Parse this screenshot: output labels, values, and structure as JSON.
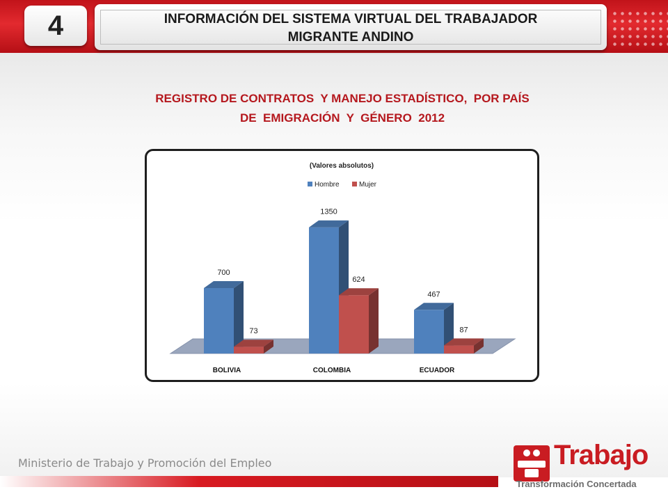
{
  "header": {
    "number": "4",
    "title_line1": "INFORMACIÓN DEL SISTEMA VIRTUAL DEL TRABAJADOR",
    "title_line2": "MIGRANTE ANDINO"
  },
  "subtitle": {
    "line1": "REGISTRO DE CONTRATOS  Y MANEJO ESTADÍSTICO,  POR PAÍS",
    "line2": "DE  EMIGRACIÓN  Y  GÉNERO  2012"
  },
  "chart_data": {
    "type": "bar",
    "title": "(Valores absolutos)",
    "categories": [
      "BOLIVIA",
      "COLOMBIA",
      "ECUADOR"
    ],
    "series": [
      {
        "name": "Hombre",
        "values": [
          700,
          1350,
          467
        ],
        "color": "#4f81bd"
      },
      {
        "name": "Mujer",
        "values": [
          73,
          624,
          87
        ],
        "color": "#c0504d"
      }
    ],
    "ylim": [
      0,
      1400
    ],
    "grid": false,
    "legend_position": "top",
    "style": "3d-clustered-column",
    "data_labels": true
  },
  "footer": {
    "ministry": "Ministerio de Trabajo y Promoción del Empleo",
    "logo_title": "Trabajo",
    "logo_subtitle": "Transformación Concertada"
  },
  "colors": {
    "header_red": "#d81a21",
    "subtitle_red": "#b5181e",
    "hombre": "#4f81bd",
    "mujer": "#c0504d"
  }
}
